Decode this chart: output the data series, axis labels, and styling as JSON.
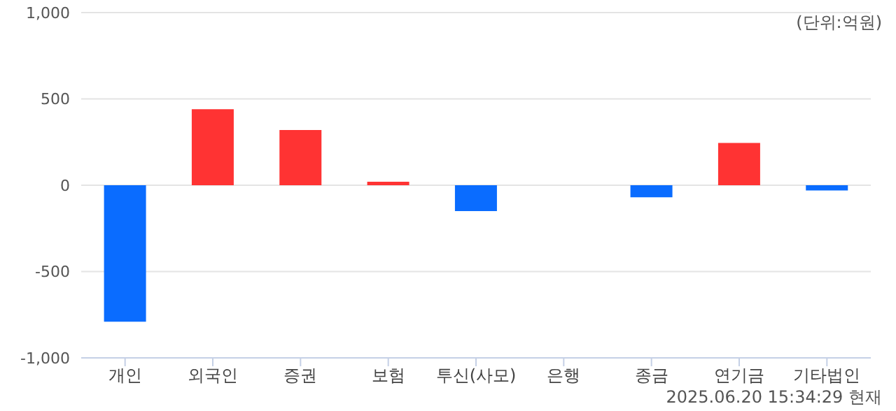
{
  "chart_data": {
    "type": "bar",
    "categories": [
      "개인",
      "외국인",
      "증권",
      "보험",
      "투신(사모)",
      "은행",
      "종금",
      "연기금",
      "기타법인"
    ],
    "values": [
      -790,
      440,
      320,
      20,
      -150,
      0,
      -70,
      245,
      -30
    ],
    "colors": [
      "#0a6cff",
      "#ff3333",
      "#ff3333",
      "#ff3333",
      "#0a6cff",
      "#ff3333",
      "#0a6cff",
      "#ff3333",
      "#0a6cff"
    ],
    "ylim": [
      -1000,
      1000
    ],
    "yticks": [
      {
        "value": -1000,
        "label": "-1,000"
      },
      -500,
      0,
      500,
      {
        "value": 1000,
        "label": "1,000"
      }
    ],
    "grid": "y",
    "annotations": [
      "(단위:억원)",
      "2025.06.20 15:34:29 현재"
    ]
  }
}
